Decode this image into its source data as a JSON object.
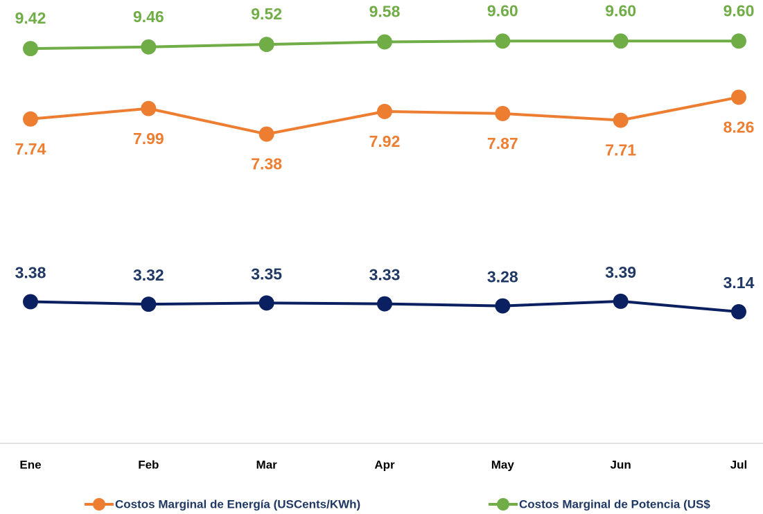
{
  "chart_data": {
    "type": "line",
    "categories": [
      "Ene",
      "Feb",
      "Mar",
      "Apr",
      "May",
      "Jun",
      "Jul"
    ],
    "series": [
      {
        "name": "Costos Marginal de Energía (USCents/KWh)",
        "color": "#ed7d31",
        "values": [
          7.74,
          7.99,
          7.38,
          7.92,
          7.87,
          7.71,
          8.26
        ],
        "value_labels": [
          "7.74",
          "7.99",
          "7.38",
          "7.92",
          "7.87",
          "7.71",
          "8.26"
        ]
      },
      {
        "name": "Costos Marginal de Potencia  (US$",
        "color": "#70ad47",
        "values": [
          9.42,
          9.46,
          9.52,
          9.58,
          9.6,
          9.6,
          9.6
        ],
        "value_labels": [
          "9.42",
          "9.46",
          "9.52",
          "9.58",
          "9.60",
          "9.60",
          "9.60"
        ]
      },
      {
        "color": "#0b2060",
        "values": [
          3.38,
          3.32,
          3.35,
          3.33,
          3.28,
          3.39,
          3.14
        ],
        "value_labels": [
          "3.38",
          "3.32",
          "3.35",
          "3.33",
          "3.28",
          "3.39",
          "3.14"
        ]
      }
    ],
    "ylim": [
      0,
      10.58
    ]
  }
}
